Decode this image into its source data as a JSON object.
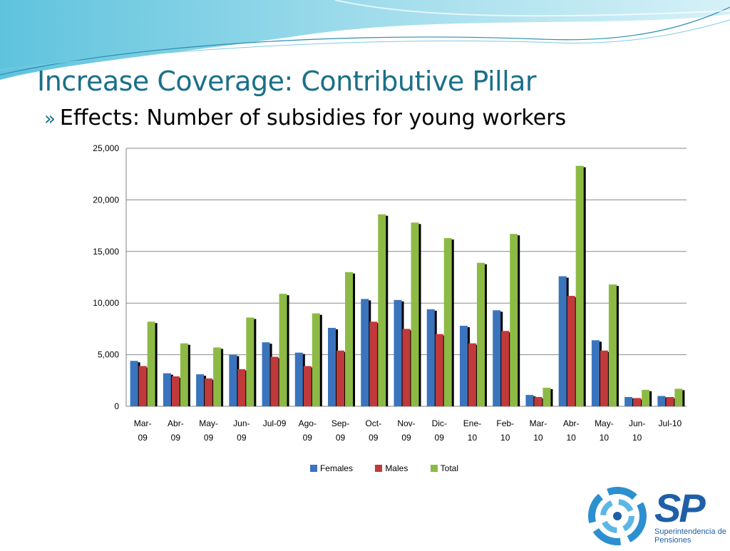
{
  "slide": {
    "title": "Increase Coverage: Contributive Pillar",
    "bullet_mark": "»",
    "bullet_text": "Effects: Number of subsidies for young workers"
  },
  "colors": {
    "title": "#1a6f8a",
    "females": "#3a74bd",
    "males": "#c0393b",
    "total": "#8dba45"
  },
  "logo": {
    "letters": "SP",
    "line1": "Superintendencia de",
    "line2": "Pensiones"
  },
  "chart_data": {
    "type": "bar",
    "categories": [
      "Mar-09",
      "Abr-09",
      "May-09",
      "Jun-09",
      "Jul-09",
      "Ago-09",
      "Sep-09",
      "Oct-09",
      "Nov-09",
      "Dic-09",
      "Ene-10",
      "Feb-10",
      "Mar-10",
      "Abr-10",
      "May-10",
      "Jun-10",
      "Jul-10"
    ],
    "category_lines": [
      [
        "Mar-",
        "09"
      ],
      [
        "Abr-",
        "09"
      ],
      [
        "May-",
        "09"
      ],
      [
        "Jun-",
        "09"
      ],
      [
        "Jul-09",
        ""
      ],
      [
        "Ago-",
        "09"
      ],
      [
        "Sep-",
        "09"
      ],
      [
        "Oct-",
        "09"
      ],
      [
        "Nov-",
        "09"
      ],
      [
        "Dic-",
        "09"
      ],
      [
        "Ene-",
        "10"
      ],
      [
        "Feb-",
        "10"
      ],
      [
        "Mar-",
        "10"
      ],
      [
        "Abr-",
        "10"
      ],
      [
        "May-",
        "10"
      ],
      [
        "Jun-",
        "10"
      ],
      [
        "Jul-10",
        ""
      ]
    ],
    "series": [
      {
        "name": "Females",
        "values": [
          4400,
          3200,
          3100,
          5000,
          6200,
          5200,
          7600,
          10400,
          10300,
          9400,
          7800,
          9300,
          1100,
          12600,
          6400,
          900,
          1000
        ]
      },
      {
        "name": "Males",
        "values": [
          3900,
          2900,
          2700,
          3600,
          4800,
          3900,
          5400,
          8200,
          7500,
          7000,
          6100,
          7300,
          900,
          10700,
          5400,
          800,
          900
        ]
      },
      {
        "name": "Total",
        "values": [
          8200,
          6100,
          5700,
          8600,
          10900,
          9000,
          13000,
          18600,
          17800,
          16300,
          13900,
          16700,
          1800,
          23300,
          11800,
          1600,
          1700
        ]
      }
    ],
    "ylim": [
      0,
      25000
    ],
    "yticks": [
      0,
      5000,
      10000,
      15000,
      20000,
      25000
    ],
    "ytick_labels": [
      "0",
      "5,000",
      "10,000",
      "15,000",
      "20,000",
      "25,000"
    ],
    "grid": true,
    "legend_position": "bottom"
  }
}
